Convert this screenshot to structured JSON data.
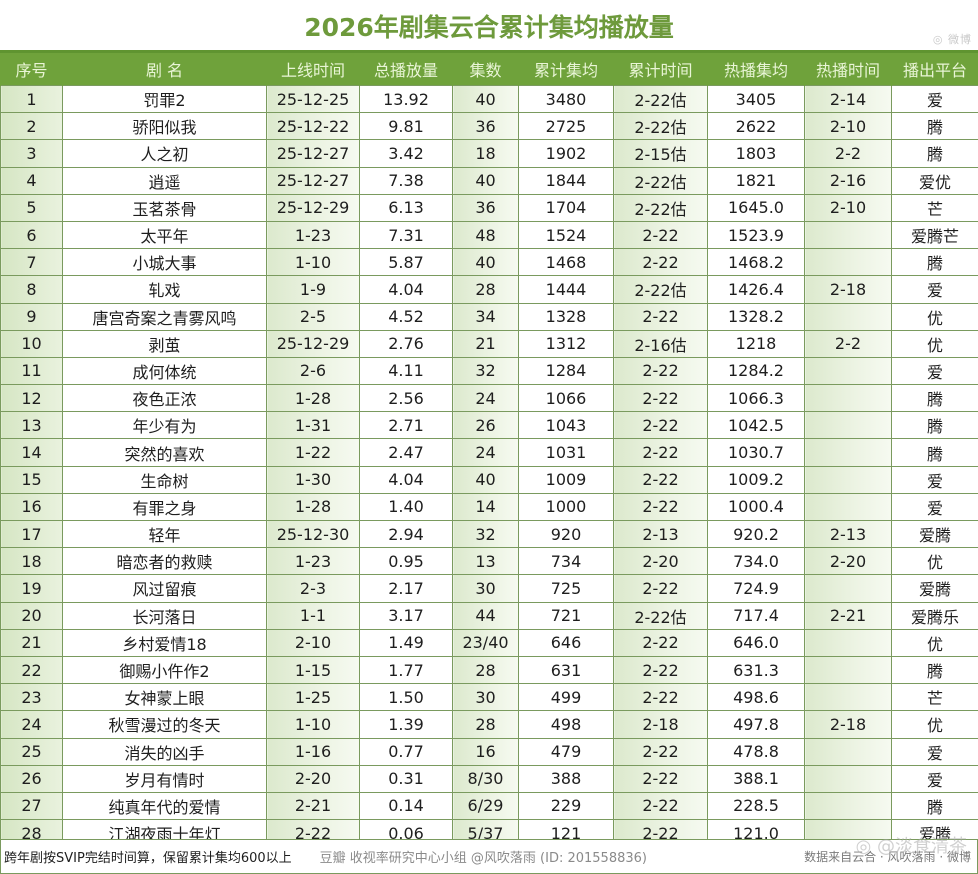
{
  "title": "2026年剧集云合累计集均播放量",
  "top_watermark": "◎ 微博",
  "table": {
    "columns": [
      "序号",
      "剧  名",
      "上线时间",
      "总播放量",
      "集数",
      "累计集均",
      "累计时间",
      "热播集均",
      "热播时间",
      "播出平台"
    ],
    "rows": [
      [
        "1",
        "罚罪2",
        "25-12-25",
        "13.92",
        "40",
        "3480",
        "2-22估",
        "3405",
        "2-14",
        "爱"
      ],
      [
        "2",
        "骄阳似我",
        "25-12-22",
        "9.81",
        "36",
        "2725",
        "2-22估",
        "2622",
        "2-10",
        "腾"
      ],
      [
        "3",
        "人之初",
        "25-12-27",
        "3.42",
        "18",
        "1902",
        "2-15估",
        "1803",
        "2-2",
        "腾"
      ],
      [
        "4",
        "逍遥",
        "25-12-27",
        "7.38",
        "40",
        "1844",
        "2-22估",
        "1821",
        "2-16",
        "爱优"
      ],
      [
        "5",
        "玉茗茶骨",
        "25-12-29",
        "6.13",
        "36",
        "1704",
        "2-22估",
        "1645.0",
        "2-10",
        "芒"
      ],
      [
        "6",
        "太平年",
        "1-23",
        "7.31",
        "48",
        "1524",
        "2-22",
        "1523.9",
        "",
        "爱腾芒"
      ],
      [
        "7",
        "小城大事",
        "1-10",
        "5.87",
        "40",
        "1468",
        "2-22",
        "1468.2",
        "",
        "腾"
      ],
      [
        "8",
        "轧戏",
        "1-9",
        "4.04",
        "28",
        "1444",
        "2-22估",
        "1426.4",
        "2-18",
        "爱"
      ],
      [
        "9",
        "唐宫奇案之青雾风鸣",
        "2-5",
        "4.52",
        "34",
        "1328",
        "2-22",
        "1328.2",
        "",
        "优"
      ],
      [
        "10",
        "剥茧",
        "25-12-29",
        "2.76",
        "21",
        "1312",
        "2-16估",
        "1218",
        "2-2",
        "优"
      ],
      [
        "11",
        "成何体统",
        "2-6",
        "4.11",
        "32",
        "1284",
        "2-22",
        "1284.2",
        "",
        "爱"
      ],
      [
        "12",
        "夜色正浓",
        "1-28",
        "2.56",
        "24",
        "1066",
        "2-22",
        "1066.3",
        "",
        "腾"
      ],
      [
        "13",
        "年少有为",
        "1-31",
        "2.71",
        "26",
        "1043",
        "2-22",
        "1042.5",
        "",
        "腾"
      ],
      [
        "14",
        "突然的喜欢",
        "1-22",
        "2.47",
        "24",
        "1031",
        "2-22",
        "1030.7",
        "",
        "腾"
      ],
      [
        "15",
        "生命树",
        "1-30",
        "4.04",
        "40",
        "1009",
        "2-22",
        "1009.2",
        "",
        "爱"
      ],
      [
        "16",
        "有罪之身",
        "1-28",
        "1.40",
        "14",
        "1000",
        "2-22",
        "1000.4",
        "",
        "爱"
      ],
      [
        "17",
        "轻年",
        "25-12-30",
        "2.94",
        "32",
        "920",
        "2-13",
        "920.2",
        "2-13",
        "爱腾"
      ],
      [
        "18",
        "暗恋者的救赎",
        "1-23",
        "0.95",
        "13",
        "734",
        "2-20",
        "734.0",
        "2-20",
        "优"
      ],
      [
        "19",
        "风过留痕",
        "2-3",
        "2.17",
        "30",
        "725",
        "2-22",
        "724.9",
        "",
        "爱腾"
      ],
      [
        "20",
        "长河落日",
        "1-1",
        "3.17",
        "44",
        "721",
        "2-22估",
        "717.4",
        "2-21",
        "爱腾乐"
      ],
      [
        "21",
        "乡村爱情18",
        "2-10",
        "1.49",
        "23/40",
        "646",
        "2-22",
        "646.0",
        "",
        "优"
      ],
      [
        "22",
        "御赐小仵作2",
        "1-15",
        "1.77",
        "28",
        "631",
        "2-22",
        "631.3",
        "",
        "腾"
      ],
      [
        "23",
        "女神蒙上眼",
        "1-25",
        "1.50",
        "30",
        "499",
        "2-22",
        "498.6",
        "",
        "芒"
      ],
      [
        "24",
        "秋雪漫过的冬天",
        "1-10",
        "1.39",
        "28",
        "498",
        "2-18",
        "497.8",
        "2-18",
        "优"
      ],
      [
        "25",
        "消失的凶手",
        "1-16",
        "0.77",
        "16",
        "479",
        "2-22",
        "478.8",
        "",
        "爱"
      ],
      [
        "26",
        "岁月有情时",
        "2-20",
        "0.31",
        "8/30",
        "388",
        "2-22",
        "388.1",
        "",
        "爱"
      ],
      [
        "27",
        "纯真年代的爱情",
        "2-21",
        "0.14",
        "6/29",
        "229",
        "2-22",
        "228.5",
        "",
        "腾"
      ],
      [
        "28",
        "江湖夜雨十年灯",
        "2-22",
        "0.06",
        "5/37",
        "121",
        "2-22",
        "121.0",
        "",
        "爱腾"
      ]
    ]
  },
  "footer": {
    "note": "跨年剧按SVIP完结时间算，保留累计集均600以上",
    "credit": "豆瓣  收视率研究中心小组 @风吹落雨 (ID: 201558836)",
    "source": "数据来自云合 · 风吹落雨 · 微博",
    "weibo_watermark": "◎ @淡食清茶"
  },
  "colors": {
    "header_bg": "#6fa23b",
    "title": "#6e9a3c",
    "header_text": "#e9f5d6",
    "grid": "#7a9a5e",
    "shade": "#dce9cd"
  }
}
